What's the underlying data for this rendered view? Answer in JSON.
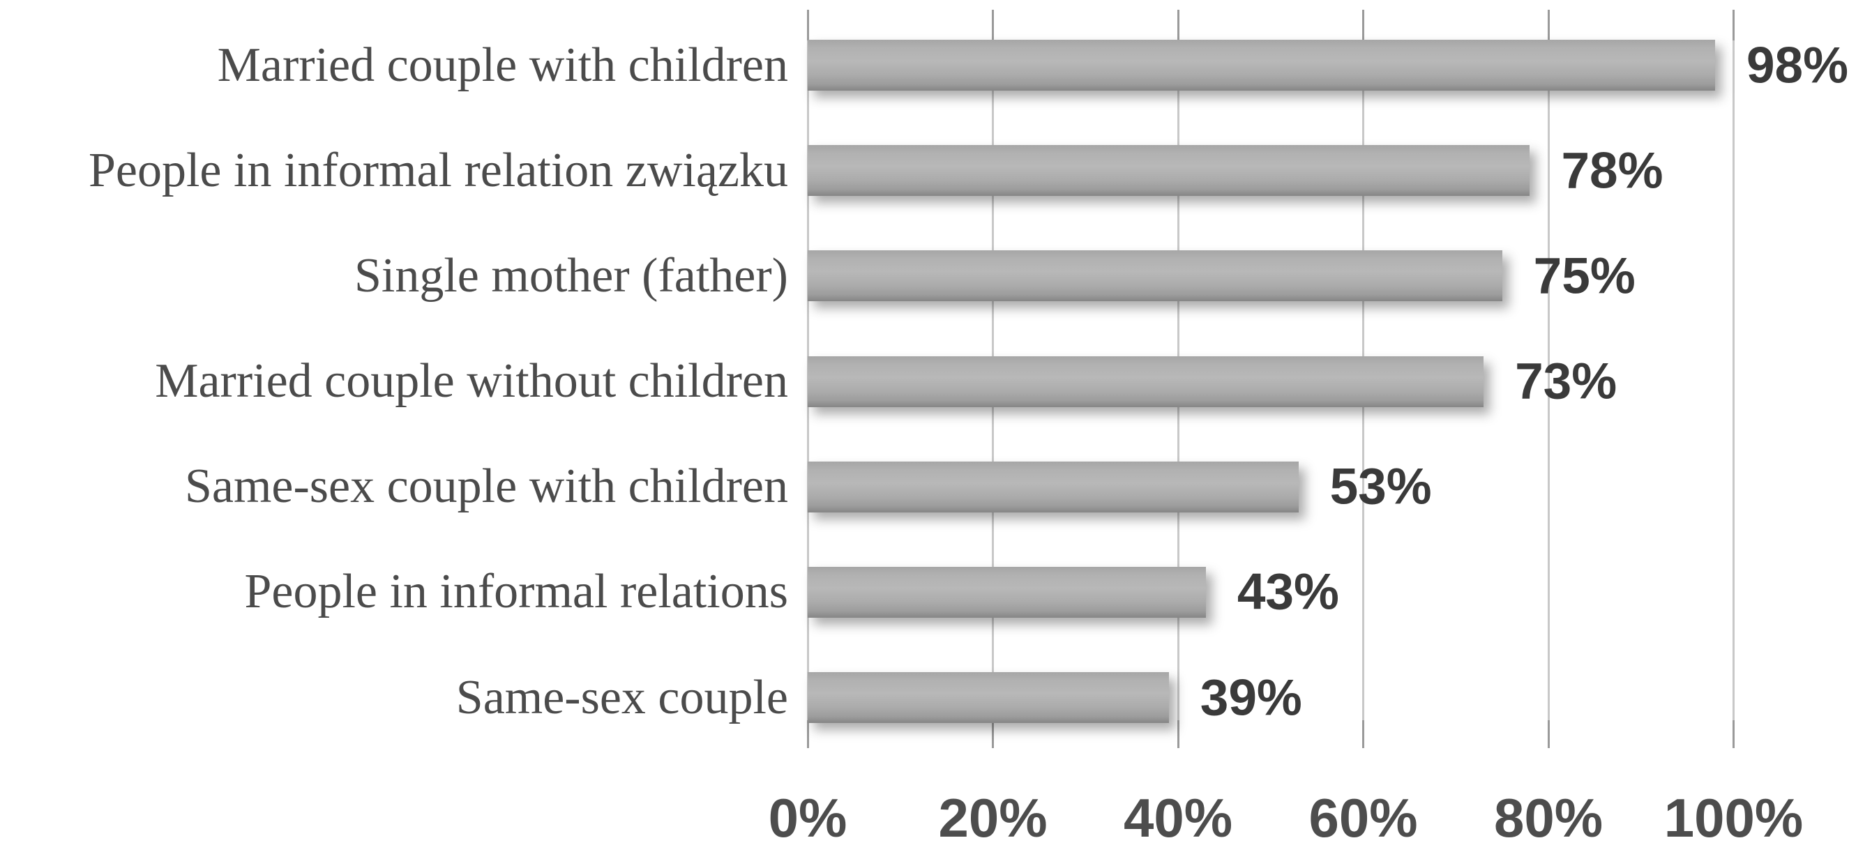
{
  "chart_data": {
    "type": "bar",
    "orientation": "horizontal",
    "title": "",
    "categories": [
      "Married couple with children",
      "People in informal relation związku",
      "Single mother (father)",
      "Married couple without children",
      "Same-sex couple with children",
      "People in informal relations",
      "Same-sex couple"
    ],
    "values": [
      98,
      78,
      75,
      73,
      53,
      43,
      39
    ],
    "value_labels": [
      "98%",
      "78%",
      "75%",
      "73%",
      "53%",
      "43%",
      "39%"
    ],
    "x_axis": {
      "ticks": [
        "0%",
        "20%",
        "40%",
        "60%",
        "80%",
        "100%"
      ],
      "tick_values": [
        0,
        20,
        40,
        60,
        80,
        100
      ],
      "min": 0,
      "max": 100
    },
    "grid": true,
    "legend": false,
    "colors": {
      "bar": "#afafaf",
      "bar_gradient_top": "#a6a6a6",
      "bar_gradient_mid": "#b8b8b8",
      "bar_gradient_bottom": "#868686",
      "gridline": "#c8c8c8",
      "tick_stub": "#9a9a9a",
      "category_text": "#4b4b4b",
      "value_text": "#3a3a3a",
      "axis_text": "#4d4d4d",
      "background": "#ffffff"
    }
  }
}
